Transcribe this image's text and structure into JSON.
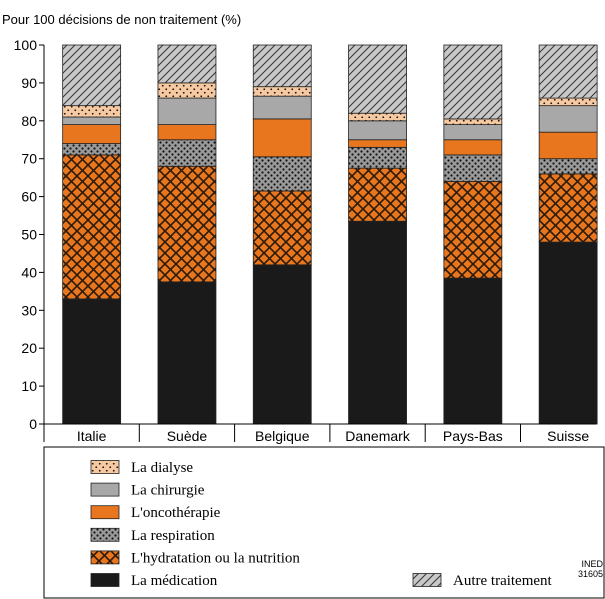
{
  "chart_data": {
    "type": "bar",
    "stacked": true,
    "ylabel": "Pour 100 décisions de non traitement  (%)",
    "ylim": [
      0,
      100
    ],
    "yticks": [
      0,
      10,
      20,
      30,
      40,
      50,
      60,
      70,
      80,
      90,
      100
    ],
    "categories": [
      "Italie",
      "Suède",
      "Belgique",
      "Danemark",
      "Pays-Bas",
      "Suisse"
    ],
    "series": [
      {
        "name": "La médication",
        "pattern": "solid",
        "color": "#1a1a1a",
        "values": [
          33,
          37.5,
          42,
          53.5,
          38.5,
          48
        ]
      },
      {
        "name": "L'hydratation ou la nutrition",
        "pattern": "crosshatch",
        "color": "#e8761e",
        "values": [
          38,
          30.5,
          19.5,
          14,
          25.5,
          18
        ]
      },
      {
        "name": "La respiration",
        "pattern": "dots",
        "color": "#9a9a9a",
        "values": [
          3,
          7,
          9,
          5.5,
          7,
          4
        ]
      },
      {
        "name": "L'oncothérapie",
        "pattern": "solid",
        "color": "#e8761e",
        "values": [
          5,
          4,
          10,
          2,
          4,
          7
        ]
      },
      {
        "name": "La chirurgie",
        "pattern": "solid",
        "color": "#a8a8a8",
        "values": [
          2,
          7,
          6,
          5,
          4,
          7
        ]
      },
      {
        "name": "La dialyse",
        "pattern": "lightdots",
        "color": "#f6c9a1",
        "values": [
          3,
          4,
          2.5,
          2,
          1.5,
          2
        ]
      },
      {
        "name": "Autre traitement",
        "pattern": "diagonal",
        "color": "#c8c8c8",
        "values": [
          16,
          10,
          11,
          18,
          19.5,
          14
        ]
      }
    ],
    "legend_order": [
      "La dialyse",
      "La chirurgie",
      "L'oncothérapie",
      "La respiration",
      "L'hydratation ou la nutrition",
      "La médication"
    ],
    "legend_extra": "Autre traitement",
    "source_lines": [
      "INED",
      "31605"
    ],
    "grid": false,
    "legend_position": "bottom"
  }
}
